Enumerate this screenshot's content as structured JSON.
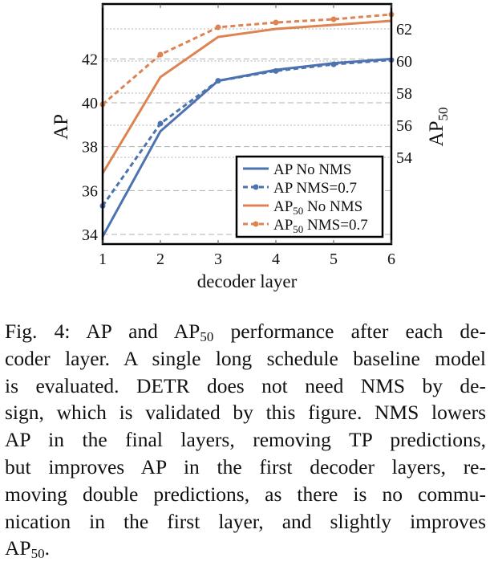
{
  "chart_data": {
    "type": "line",
    "x": [
      1,
      2,
      3,
      4,
      5,
      6
    ],
    "xlabel": "decoder layer",
    "ylabel_left": "AP",
    "ylabel_right": {
      "base": "AP",
      "sub": "50"
    },
    "xlim": [
      1,
      6
    ],
    "ylim_left": [
      33.56,
      44.5
    ],
    "ylim_right": [
      48.6,
      63.55
    ],
    "left_ticks": [
      "34",
      "36",
      "38",
      "40",
      "42"
    ],
    "right_ticks": [
      "54",
      "56",
      "58",
      "60",
      "62"
    ],
    "x_ticks": [
      "1",
      "2",
      "3",
      "4",
      "5",
      "6"
    ],
    "grid": true,
    "legend_position": "bottom-right",
    "series": [
      {
        "name": "AP No NMS",
        "label_base": "AP",
        "label_sub": "",
        "label_rest": " No NMS",
        "axis": "left",
        "color": "#4c72b0",
        "style": "solid",
        "values": [
          33.9,
          38.7,
          41.0,
          41.5,
          41.8,
          42.0
        ]
      },
      {
        "name": "AP NMS=0.7",
        "label_base": "AP",
        "label_sub": "",
        "label_rest": " NMS=0.7",
        "axis": "left",
        "color": "#4c72b0",
        "style": "dashed",
        "values": [
          35.3,
          39.05,
          41.0,
          41.45,
          41.75,
          41.95
        ]
      },
      {
        "name": "AP50 No NMS",
        "label_base": "AP",
        "label_sub": "50",
        "label_rest": " No NMS",
        "axis": "right",
        "color": "#dd8452",
        "style": "solid",
        "values": [
          53.0,
          59.0,
          61.5,
          62.0,
          62.25,
          62.5
        ]
      },
      {
        "name": "AP50 NMS=0.7",
        "label_base": "AP",
        "label_sub": "50",
        "label_rest": " NMS=0.7",
        "axis": "right",
        "color": "#dd8452",
        "style": "dashed",
        "values": [
          57.3,
          60.4,
          62.1,
          62.4,
          62.6,
          62.9
        ]
      }
    ]
  },
  "caption": {
    "l1a": "Fig. 4: AP and AP",
    "l1sub": "50",
    "l1b": " performance after each de-",
    "l2": "coder layer. A single long schedule baseline model",
    "l3": "is evaluated. DETR does not need NMS by de-",
    "l4": "sign, which is validated by this figure. NMS lowers",
    "l5": "AP in the final layers, removing TP predictions,",
    "l6": "but improves AP in the first decoder layers, re-",
    "l7": "moving double predictions, as there is no commu-",
    "l8": "nication in the first layer, and slightly improves",
    "l9a": "AP",
    "l9sub": "50",
    "l9b": "."
  }
}
